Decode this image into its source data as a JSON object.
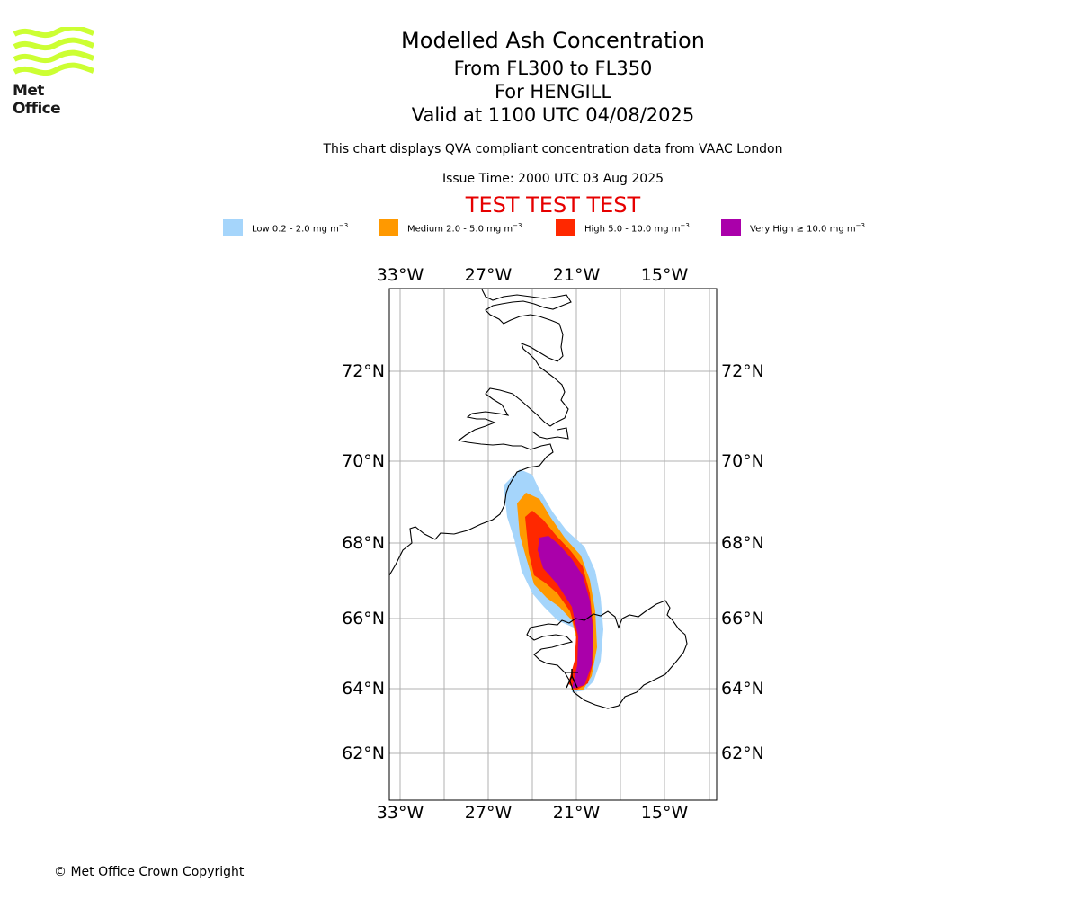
{
  "logo": {
    "text": "Met Office",
    "color": "#ccff33"
  },
  "header": {
    "title": "Modelled Ash Concentration",
    "level_range": "From FL300 to FL350",
    "volcano": "For HENGILL",
    "valid_time": "Valid at 1100 UTC 04/08/2025",
    "compliance_note": "This chart displays QVA compliant concentration data from VAAC London",
    "issue_time": "Issue Time: 2000 UTC 03 Aug 2025",
    "test_banner": "TEST TEST TEST"
  },
  "legend": [
    {
      "label": "Low 0.2 - 2.0 mg m",
      "color": "#a5d5fb"
    },
    {
      "label": "Medium 2.0 - 5.0 mg m",
      "color": "#ff9900"
    },
    {
      "label": "High 5.0 - 10.0 mg m",
      "color": "#ff2800"
    },
    {
      "label": "Very High ≥ 10.0 mg m",
      "color": "#aa00aa"
    }
  ],
  "legend_unit_exponent": "−3",
  "map": {
    "longitude_labels": [
      "33°W",
      "27°W",
      "21°W",
      "15°W"
    ],
    "latitude_labels": [
      "72°N",
      "70°N",
      "68°N",
      "66°N",
      "64°N",
      "62°N"
    ],
    "grid": true,
    "volcano_marker": "triangle"
  },
  "footer": {
    "copyright": "© Met Office Crown Copyright"
  }
}
